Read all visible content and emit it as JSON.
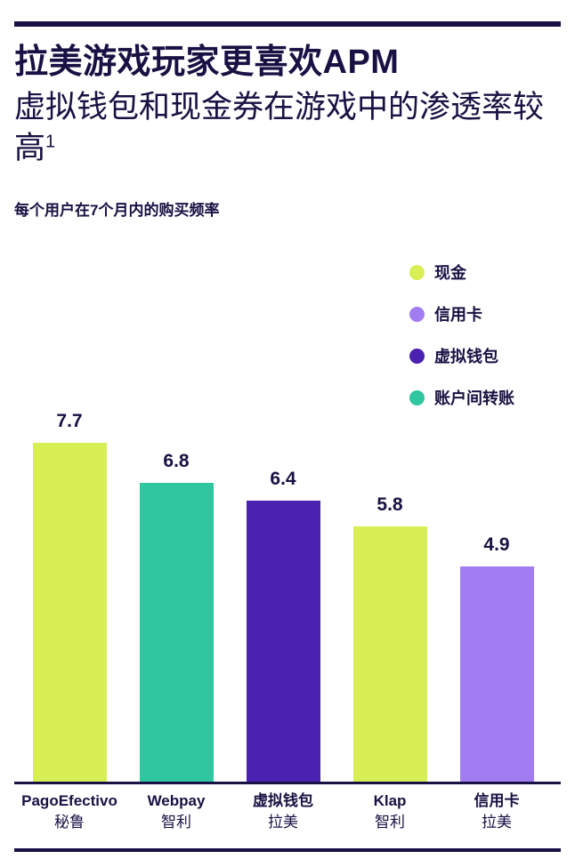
{
  "header": {
    "title": "拉美游戏玩家更喜欢APM",
    "subtitle": "虚拟钱包和现金券在游戏中的渗透率较高",
    "subtitle_footnote_marker": "1",
    "note": "每个用户在7个月内的购买频率"
  },
  "colors": {
    "navy": "#181143",
    "cash": "#d8ee55",
    "credit_card": "#a27df2",
    "virtual_wallet": "#4a21b0",
    "account_transfer": "#2fc6a0"
  },
  "legend": {
    "items": [
      {
        "label": "现金",
        "color_key": "cash"
      },
      {
        "label": "信用卡",
        "color_key": "credit_card"
      },
      {
        "label": "虚拟钱包",
        "color_key": "virtual_wallet"
      },
      {
        "label": "账户间转账",
        "color_key": "account_transfer"
      }
    ]
  },
  "chart_data": {
    "type": "bar",
    "title": "每个用户在7个月内的购买频率",
    "categories": [
      "PagoEfectivo (秘鲁)",
      "Webpay (智利)",
      "虚拟钱包 (拉美)",
      "Klap (智利)",
      "信用卡 (拉美)"
    ],
    "values": [
      7.7,
      6.8,
      6.4,
      5.8,
      4.9
    ],
    "ylim": [
      0,
      8
    ],
    "grid": false,
    "legend_position": "top-right",
    "bars": [
      {
        "name": "PagoEfectivo",
        "region": "秘鲁",
        "value": 7.7,
        "color_key": "cash"
      },
      {
        "name": "Webpay",
        "region": "智利",
        "value": 6.8,
        "color_key": "account_transfer"
      },
      {
        "name": "虚拟钱包",
        "region": "拉美",
        "value": 6.4,
        "color_key": "virtual_wallet"
      },
      {
        "name": "Klap",
        "region": "智利",
        "value": 5.8,
        "color_key": "cash"
      },
      {
        "name": "信用卡",
        "region": "拉美",
        "value": 4.9,
        "color_key": "credit_card"
      }
    ]
  }
}
